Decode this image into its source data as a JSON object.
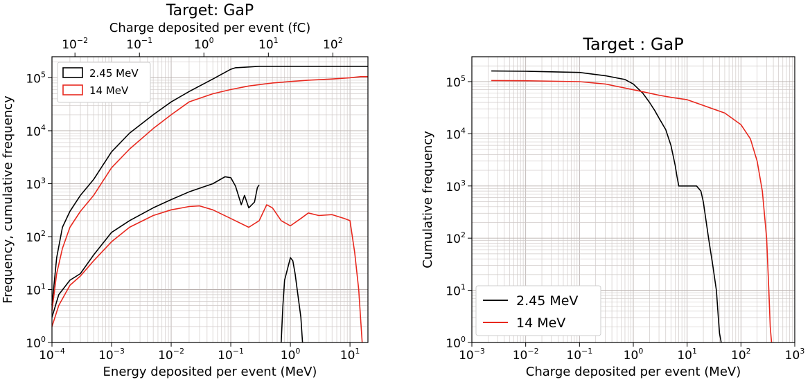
{
  "chart_data": [
    {
      "type": "line",
      "title": "Target: GaP",
      "top_xlabel": "Charge deposited per event (fC)",
      "xlabel": "Energy deposited per event (MeV)",
      "ylabel": "Frequency, cumulative frequency",
      "xscale": "log",
      "yscale": "log",
      "xlim": [
        0.0001,
        20
      ],
      "ylim": [
        1,
        250000
      ],
      "top_xlim": [
        0.0044,
        350
      ],
      "grid": true,
      "legend_position": "top-left",
      "x_ticks": [
        {
          "base": "10",
          "exp": "−4",
          "value": 0.0001
        },
        {
          "base": "10",
          "exp": "−3",
          "value": 0.001
        },
        {
          "base": "10",
          "exp": "−2",
          "value": 0.01
        },
        {
          "base": "10",
          "exp": "−1",
          "value": 0.1
        },
        {
          "base": "10",
          "exp": "0",
          "value": 1
        },
        {
          "base": "10",
          "exp": "1",
          "value": 10
        }
      ],
      "top_x_ticks": [
        {
          "base": "10",
          "exp": "−2",
          "value": 0.01
        },
        {
          "base": "10",
          "exp": "−1",
          "value": 0.1
        },
        {
          "base": "10",
          "exp": "0",
          "value": 1
        },
        {
          "base": "10",
          "exp": "1",
          "value": 10
        },
        {
          "base": "10",
          "exp": "2",
          "value": 100
        }
      ],
      "y_ticks": [
        {
          "base": "10",
          "exp": "0",
          "value": 1
        },
        {
          "base": "10",
          "exp": "1",
          "value": 10
        },
        {
          "base": "10",
          "exp": "2",
          "value": 100
        },
        {
          "base": "10",
          "exp": "3",
          "value": 1000
        },
        {
          "base": "10",
          "exp": "4",
          "value": 10000
        },
        {
          "base": "10",
          "exp": "5",
          "value": 100000
        }
      ],
      "series": [
        {
          "name": "2.45 MeV",
          "color": "#000000",
          "role": "cumulative",
          "x": [
            0.0001,
            0.00012,
            0.00015,
            0.0002,
            0.0003,
            0.0005,
            0.001,
            0.002,
            0.005,
            0.01,
            0.02,
            0.05,
            0.1,
            0.12,
            0.2,
            0.3,
            20
          ],
          "y": [
            5,
            40,
            150,
            300,
            600,
            1200,
            4000,
            9000,
            20000,
            35000,
            55000,
            95000,
            145000,
            155000,
            160000,
            165000,
            165000
          ]
        },
        {
          "name": "14 MeV",
          "color": "#e8281e",
          "role": "cumulative",
          "x": [
            0.0001,
            0.00012,
            0.00015,
            0.0002,
            0.0003,
            0.0005,
            0.001,
            0.002,
            0.005,
            0.01,
            0.02,
            0.05,
            0.1,
            0.2,
            0.5,
            1,
            2,
            5,
            10,
            15,
            20
          ],
          "y": [
            4,
            20,
            60,
            150,
            300,
            600,
            2000,
            4500,
            11000,
            20000,
            35000,
            50000,
            60000,
            70000,
            80000,
            85000,
            90000,
            95000,
            100000,
            105000,
            105000
          ]
        },
        {
          "name": "2.45 MeV",
          "color": "#000000",
          "role": "frequency",
          "x": [
            0.0001,
            0.00013,
            0.0002,
            0.0003,
            0.0005,
            0.001,
            0.002,
            0.005,
            0.01,
            0.02,
            0.05,
            0.08,
            0.1,
            0.12,
            0.15,
            0.17,
            0.2,
            0.25,
            0.28,
            0.3
          ],
          "y": [
            3,
            8,
            15,
            20,
            45,
            120,
            200,
            350,
            500,
            700,
            1000,
            1350,
            1300,
            900,
            400,
            600,
            350,
            450,
            850,
            950
          ]
        },
        {
          "name": "2.45 MeV",
          "color": "#000000",
          "role": "frequency-high",
          "x": [
            0.7,
            0.75,
            0.8,
            0.9,
            1.0,
            1.1,
            1.2,
            1.3,
            1.5,
            1.6
          ],
          "y": [
            1,
            5,
            15,
            25,
            40,
            35,
            20,
            10,
            3,
            1
          ]
        },
        {
          "name": "14 MeV",
          "color": "#e8281e",
          "role": "frequency",
          "x": [
            0.0001,
            0.00013,
            0.0002,
            0.0003,
            0.0005,
            0.001,
            0.002,
            0.005,
            0.01,
            0.02,
            0.03,
            0.05,
            0.1,
            0.2,
            0.3,
            0.4,
            0.5,
            0.7,
            1,
            1.5,
            2,
            3,
            5,
            8,
            10,
            12,
            14,
            15,
            16
          ],
          "y": [
            2,
            5,
            12,
            18,
            35,
            80,
            150,
            250,
            320,
            370,
            380,
            320,
            220,
            150,
            200,
            400,
            350,
            200,
            160,
            220,
            280,
            250,
            260,
            220,
            200,
            50,
            10,
            3,
            1
          ]
        }
      ]
    },
    {
      "type": "line",
      "title": "Target : GaP",
      "xlabel": "Charge deposited per event (MeV)",
      "ylabel": "Cumulative frequency",
      "xscale": "log",
      "yscale": "log",
      "xlim": [
        0.001,
        1000
      ],
      "ylim": [
        1,
        300000
      ],
      "grid": true,
      "legend_position": "bottom-left",
      "x_ticks": [
        {
          "base": "10",
          "exp": "−3",
          "value": 0.001
        },
        {
          "base": "10",
          "exp": "−2",
          "value": 0.01
        },
        {
          "base": "10",
          "exp": "−1",
          "value": 0.1
        },
        {
          "base": "10",
          "exp": "0",
          "value": 1
        },
        {
          "base": "10",
          "exp": "1",
          "value": 10
        },
        {
          "base": "10",
          "exp": "2",
          "value": 100
        },
        {
          "base": "10",
          "exp": "3",
          "value": 1000
        }
      ],
      "y_ticks": [
        {
          "base": "10",
          "exp": "0",
          "value": 1
        },
        {
          "base": "10",
          "exp": "1",
          "value": 10
        },
        {
          "base": "10",
          "exp": "2",
          "value": 100
        },
        {
          "base": "10",
          "exp": "3",
          "value": 1000
        },
        {
          "base": "10",
          "exp": "4",
          "value": 10000
        },
        {
          "base": "10",
          "exp": "5",
          "value": 100000
        }
      ],
      "series": [
        {
          "name": "2.45 MeV",
          "color": "#000000",
          "x": [
            0.0023,
            0.01,
            0.1,
            0.3,
            0.7,
            1.0,
            1.5,
            2.0,
            2.5,
            3.0,
            4.0,
            5.0,
            6.0,
            6.5,
            7.0,
            10,
            15,
            18,
            20,
            25,
            30,
            35,
            38,
            40,
            43
          ],
          "y": [
            160000,
            158000,
            150000,
            130000,
            110000,
            90000,
            60000,
            40000,
            28000,
            20000,
            12000,
            6000,
            2500,
            1500,
            1000,
            1000,
            1000,
            800,
            500,
            100,
            30,
            10,
            3,
            1.5,
            1
          ]
        },
        {
          "name": "14 MeV",
          "color": "#e8281e",
          "x": [
            0.0023,
            0.01,
            0.1,
            0.3,
            1.0,
            2.0,
            3.0,
            5.0,
            10,
            20,
            50,
            100,
            150,
            200,
            250,
            300,
            330,
            350,
            370
          ],
          "y": [
            105000,
            104000,
            100000,
            90000,
            70000,
            60000,
            55000,
            50000,
            45000,
            35000,
            25000,
            15000,
            8000,
            3000,
            800,
            100,
            10,
            2,
            1
          ]
        }
      ]
    }
  ]
}
